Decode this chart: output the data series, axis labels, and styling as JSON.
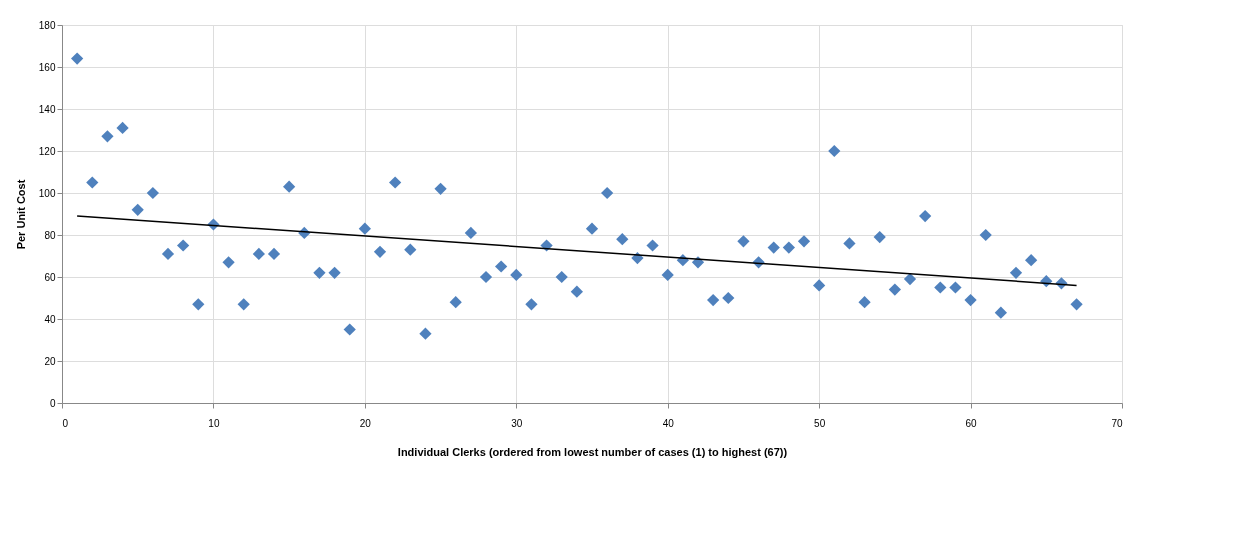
{
  "chart_data": {
    "type": "scatter",
    "xlabel": "Individual Clerks  (ordered from lowest number of cases (1) to highest (67))",
    "ylabel": "Per Unit Cost",
    "x": [
      1,
      2,
      3,
      4,
      5,
      6,
      7,
      8,
      9,
      10,
      11,
      12,
      13,
      14,
      15,
      16,
      17,
      18,
      19,
      20,
      21,
      22,
      23,
      24,
      25,
      26,
      27,
      28,
      29,
      30,
      31,
      32,
      33,
      34,
      35,
      36,
      37,
      38,
      39,
      40,
      41,
      42,
      43,
      44,
      45,
      46,
      47,
      48,
      49,
      50,
      51,
      52,
      53,
      54,
      55,
      56,
      57,
      58,
      59,
      60,
      61,
      62,
      63,
      64,
      65,
      66,
      67
    ],
    "series": [
      {
        "color": "#4f81bd",
        "marker": "diamond",
        "values": [
          164,
          105,
          127,
          131,
          92,
          100,
          71,
          75,
          47,
          85,
          67,
          47,
          71,
          71,
          103,
          81,
          62,
          62,
          35,
          83,
          72,
          105,
          73,
          33,
          102,
          48,
          81,
          60,
          65,
          61,
          47,
          75,
          60,
          53,
          83,
          100,
          78,
          69,
          75,
          61,
          68,
          67,
          49,
          50,
          77,
          67,
          74,
          74,
          77,
          56,
          120,
          76,
          48,
          79,
          54,
          59,
          89,
          55,
          55,
          49,
          80,
          43,
          62,
          68,
          58,
          57,
          47
        ]
      },
      {
        "type": "line",
        "color": "#000000",
        "x": [
          1,
          67
        ],
        "values": [
          89,
          56
        ]
      }
    ],
    "xlim": [
      0,
      70
    ],
    "xticks": [
      0,
      10,
      20,
      30,
      40,
      50,
      60,
      70
    ],
    "ylim": [
      0,
      180
    ],
    "yticks": [
      0,
      20,
      40,
      60,
      80,
      100,
      120,
      140,
      160,
      180
    ],
    "grid": true
  }
}
